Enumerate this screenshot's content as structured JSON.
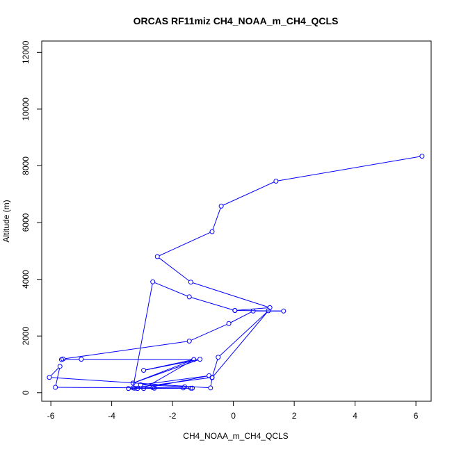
{
  "chart_data": {
    "type": "scatter",
    "title": "ORCAS RF11miz CH4_NOAA_m_CH4_QCLS",
    "xlabel": "CH4_NOAA_m_CH4_QCLS",
    "ylabel": "Altitude (m)",
    "xlim": [
      -6.3,
      6.5
    ],
    "ylim": [
      -300,
      12400
    ],
    "xticks": [
      -6,
      -4,
      -2,
      0,
      2,
      4,
      6
    ],
    "xtick_labels": [
      "-6",
      "-4",
      "-2",
      "0",
      "2",
      "4",
      "6"
    ],
    "yticks": [
      0,
      2000,
      4000,
      6000,
      8000,
      10000,
      12000
    ],
    "ytick_labels": [
      "0",
      "2000",
      "4000",
      "6000",
      "8000",
      "10000",
      "12000"
    ],
    "grid": false,
    "series": [
      {
        "color": "#0000ff",
        "marker": "open-circle",
        "line": true,
        "points": [
          {
            "x": 6.2,
            "y": 8340
          },
          {
            "x": 1.4,
            "y": 7460
          },
          {
            "x": -0.4,
            "y": 6580
          },
          {
            "x": -0.7,
            "y": 5680
          },
          {
            "x": -2.5,
            "y": 4800
          },
          {
            "x": -1.4,
            "y": 3900
          },
          {
            "x": 1.2,
            "y": 3000
          },
          {
            "x": 0.05,
            "y": 2900
          },
          {
            "x": 1.65,
            "y": 2880
          },
          {
            "x": 0.65,
            "y": 2880
          },
          {
            "x": -0.15,
            "y": 2440
          },
          {
            "x": -1.45,
            "y": 1820
          },
          {
            "x": -5.6,
            "y": 1190
          },
          {
            "x": -5.65,
            "y": 1170
          },
          {
            "x": -5.0,
            "y": 1180
          },
          {
            "x": -1.3,
            "y": 1170
          },
          {
            "x": -2.95,
            "y": 790
          },
          {
            "x": -1.1,
            "y": 1180
          },
          {
            "x": -3.3,
            "y": 340
          },
          {
            "x": -1.3,
            "y": 1170
          },
          {
            "x": -2.95,
            "y": 150
          },
          {
            "x": -0.8,
            "y": 600
          },
          {
            "x": -3.05,
            "y": 280
          },
          {
            "x": -1.6,
            "y": 210
          },
          {
            "x": -1.65,
            "y": 170
          },
          {
            "x": -2.65,
            "y": 180
          },
          {
            "x": -2.6,
            "y": 160
          },
          {
            "x": -3.45,
            "y": 150
          },
          {
            "x": -3.25,
            "y": 160
          },
          {
            "x": -3.15,
            "y": 150
          },
          {
            "x": -1.35,
            "y": 160
          },
          {
            "x": -1.4,
            "y": 160
          },
          {
            "x": -5.85,
            "y": 190
          },
          {
            "x": -5.7,
            "y": 930
          },
          {
            "x": -6.05,
            "y": 540
          },
          {
            "x": -0.75,
            "y": 170
          },
          {
            "x": -0.7,
            "y": 530
          },
          {
            "x": 1.15,
            "y": 2890
          },
          {
            "x": -0.5,
            "y": 1250
          },
          {
            "x": -0.7,
            "y": 540
          },
          {
            "x": -3.3,
            "y": 170
          },
          {
            "x": -2.65,
            "y": 3910
          },
          {
            "x": -1.45,
            "y": 3380
          },
          {
            "x": 0.05,
            "y": 2900
          }
        ]
      }
    ]
  }
}
